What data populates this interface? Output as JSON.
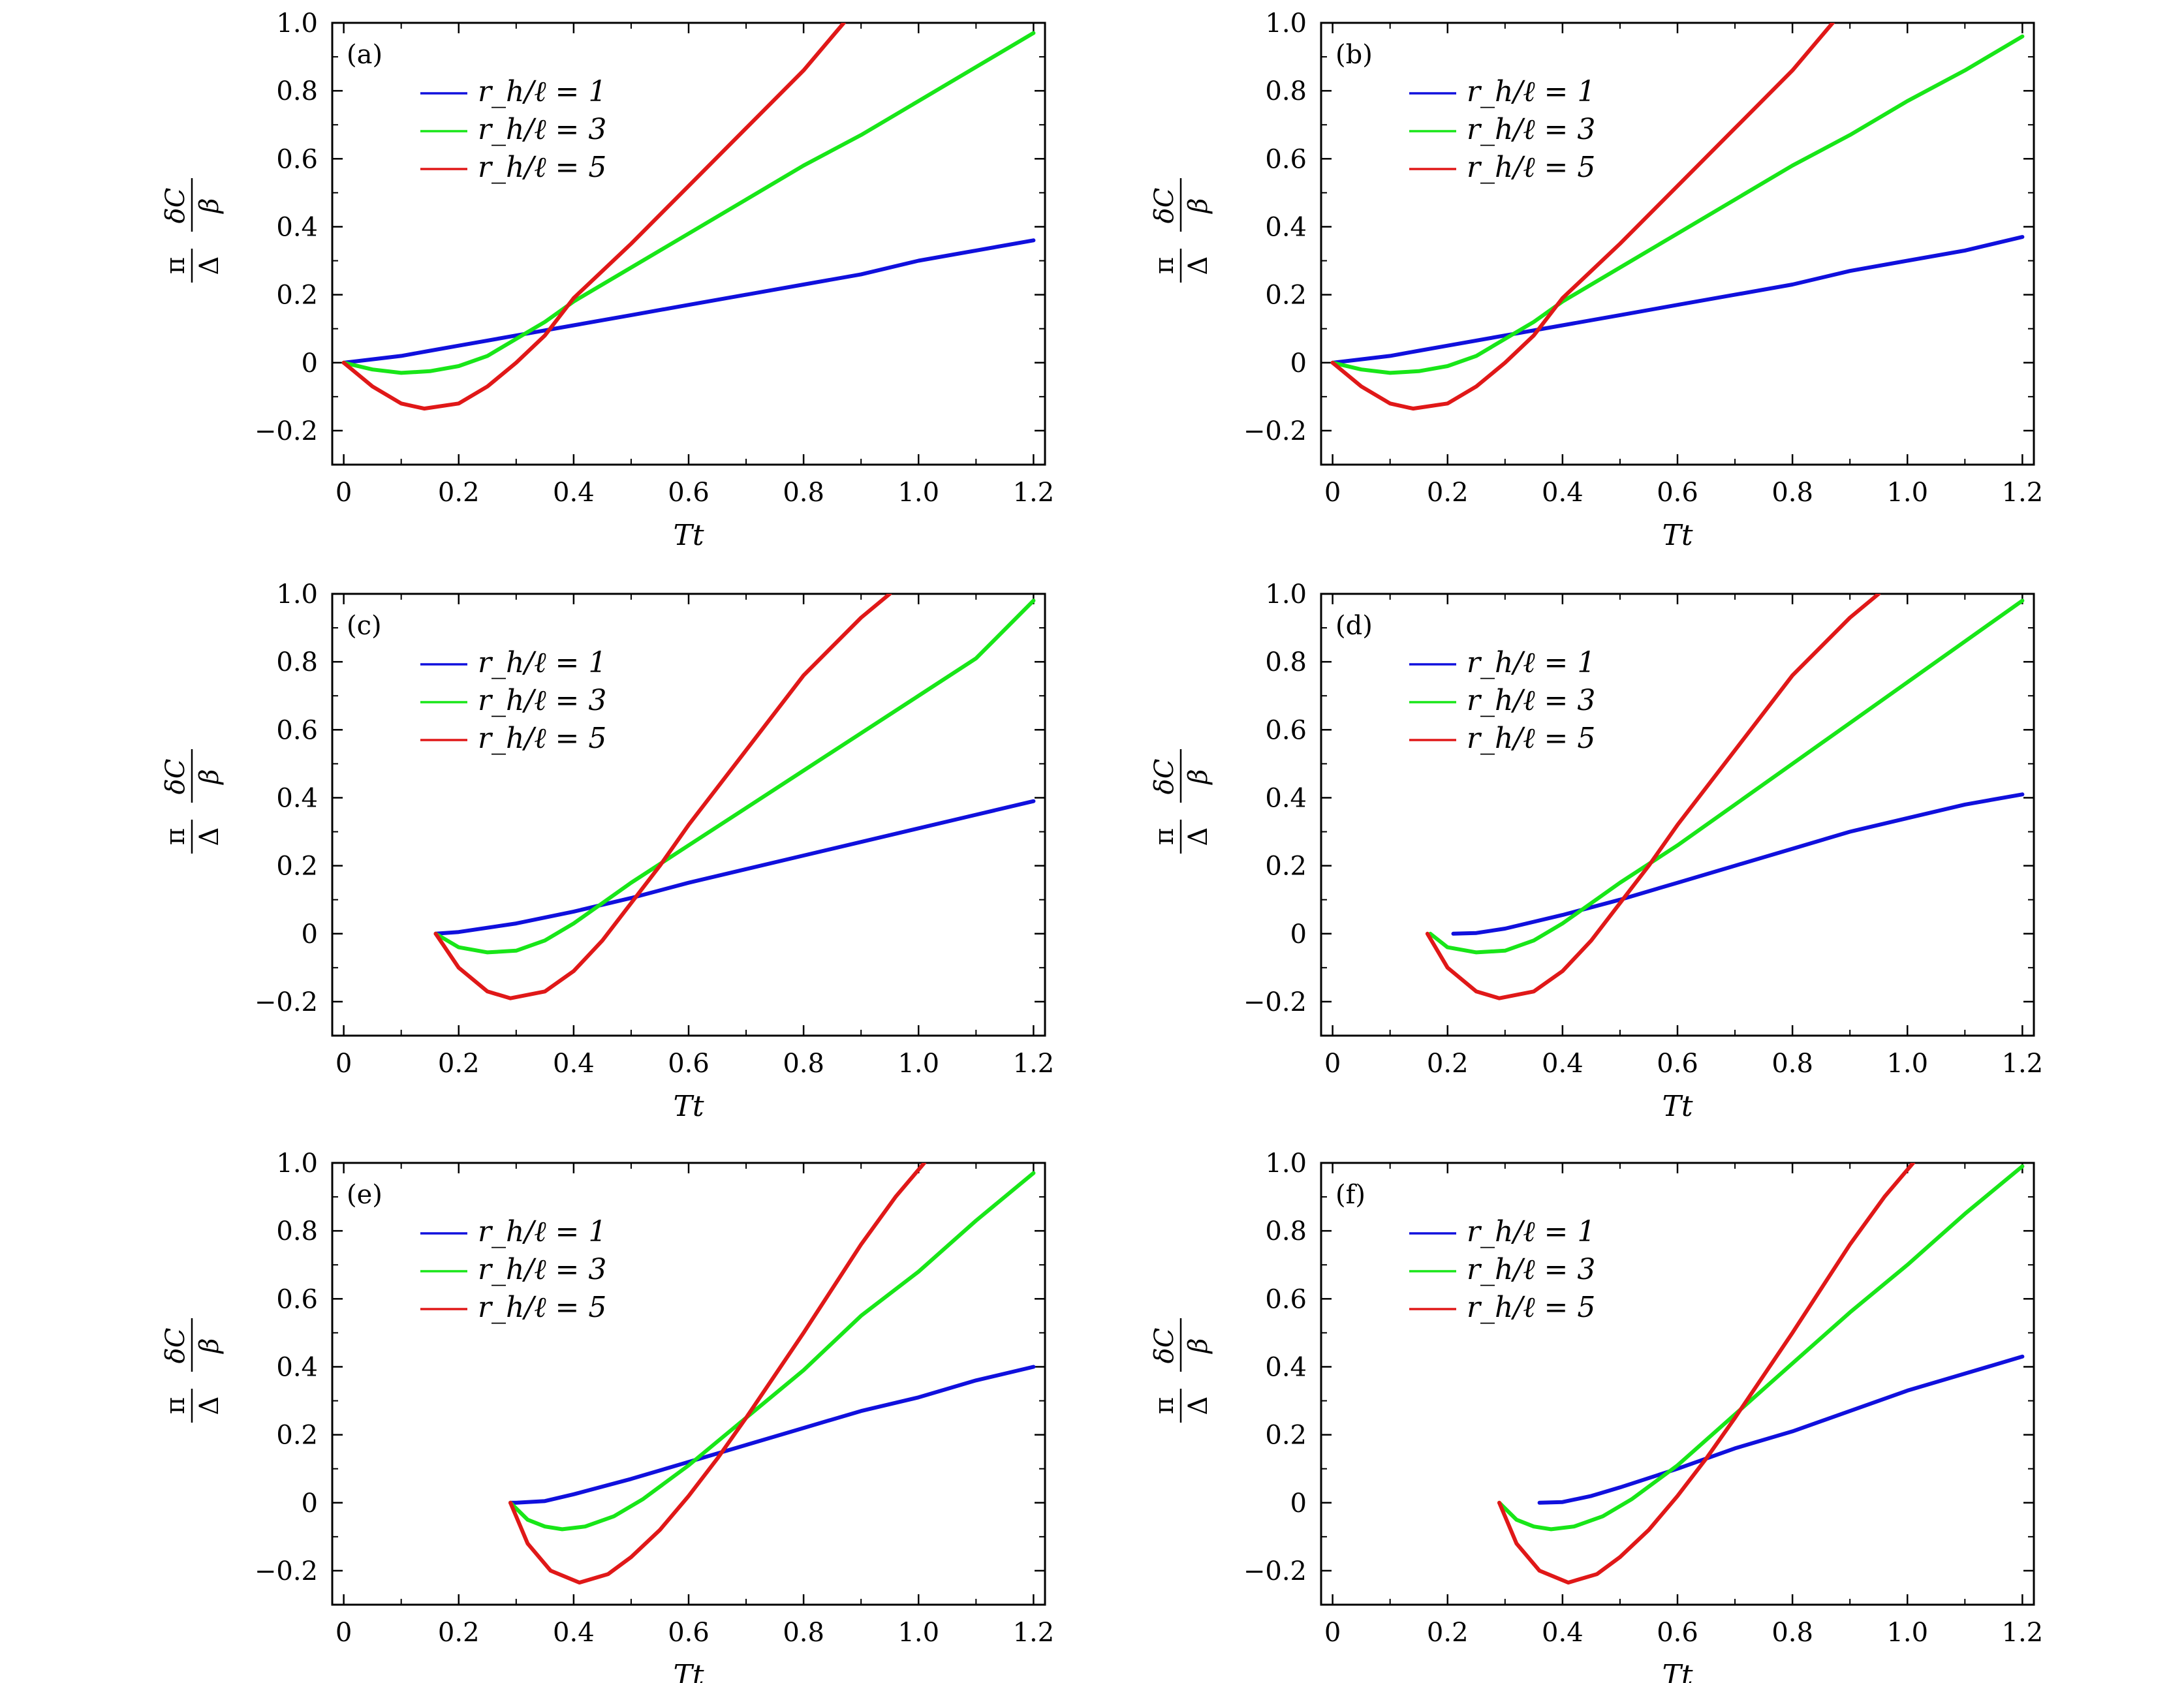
{
  "figure": {
    "legend_labels": [
      "r_h/ℓ = 1",
      "r_h/ℓ = 3",
      "r_h/ℓ = 5"
    ],
    "series_colors": {
      "blue": "#1010dd",
      "green": "#18e618",
      "red": "#e01818"
    },
    "y_axis_label": {
      "numerator_left": "π",
      "numerator_right": "δC",
      "denominator_left": "Δ",
      "denominator_right": "β"
    },
    "x_axis_label": "Tt"
  },
  "chart_data": [
    {
      "type": "line",
      "panel": "(a)",
      "xlabel": "Tt",
      "ylabel": "π/Δ · δC/β",
      "xlim": [
        -0.02,
        1.22
      ],
      "ylim": [
        -0.3,
        1.0
      ],
      "xticks": [
        "0",
        "0.2",
        "0.4",
        "0.6",
        "0.8",
        "1.0",
        "1.2"
      ],
      "yticks": [
        "−0.2",
        "0",
        "0.2",
        "0.4",
        "0.6",
        "0.8",
        "1.0"
      ],
      "legend_position": "upper-left",
      "series": [
        {
          "name": "r_h/ℓ = 1",
          "color": "#1010dd",
          "x": [
            0,
            0.05,
            0.1,
            0.15,
            0.2,
            0.3,
            0.4,
            0.5,
            0.6,
            0.7,
            0.8,
            0.9,
            1.0,
            1.1,
            1.2
          ],
          "y": [
            0,
            0.01,
            0.02,
            0.035,
            0.05,
            0.08,
            0.11,
            0.14,
            0.17,
            0.2,
            0.23,
            0.26,
            0.3,
            0.33,
            0.36
          ]
        },
        {
          "name": "r_h/ℓ = 3",
          "color": "#18e618",
          "x": [
            0,
            0.05,
            0.1,
            0.15,
            0.2,
            0.25,
            0.3,
            0.35,
            0.4,
            0.5,
            0.6,
            0.7,
            0.8,
            0.9,
            1.0,
            1.1,
            1.2
          ],
          "y": [
            0,
            -0.02,
            -0.03,
            -0.025,
            -0.01,
            0.02,
            0.07,
            0.12,
            0.18,
            0.28,
            0.38,
            0.48,
            0.58,
            0.67,
            0.77,
            0.87,
            0.97
          ]
        },
        {
          "name": "r_h/ℓ = 5",
          "color": "#e01818",
          "x": [
            0,
            0.05,
            0.1,
            0.14,
            0.2,
            0.25,
            0.3,
            0.35,
            0.4,
            0.5,
            0.6,
            0.7,
            0.8,
            0.87
          ],
          "y": [
            0,
            -0.07,
            -0.12,
            -0.135,
            -0.12,
            -0.07,
            0.0,
            0.08,
            0.19,
            0.35,
            0.52,
            0.69,
            0.86,
            1.0
          ]
        }
      ]
    },
    {
      "type": "line",
      "panel": "(b)",
      "xlabel": "Tt",
      "ylabel": "π/Δ · δC/β",
      "xlim": [
        -0.02,
        1.22
      ],
      "ylim": [
        -0.3,
        1.0
      ],
      "xticks": [
        "0",
        "0.2",
        "0.4",
        "0.6",
        "0.8",
        "1.0",
        "1.2"
      ],
      "yticks": [
        "−0.2",
        "0",
        "0.2",
        "0.4",
        "0.6",
        "0.8",
        "1.0"
      ],
      "legend_position": "upper-left",
      "series": [
        {
          "name": "r_h/ℓ = 1",
          "color": "#1010dd",
          "x": [
            0,
            0.05,
            0.1,
            0.15,
            0.2,
            0.3,
            0.4,
            0.5,
            0.6,
            0.7,
            0.8,
            0.9,
            1.0,
            1.1,
            1.2
          ],
          "y": [
            0,
            0.01,
            0.02,
            0.035,
            0.05,
            0.08,
            0.11,
            0.14,
            0.17,
            0.2,
            0.23,
            0.27,
            0.3,
            0.33,
            0.37
          ]
        },
        {
          "name": "r_h/ℓ = 3",
          "color": "#18e618",
          "x": [
            0,
            0.05,
            0.1,
            0.15,
            0.2,
            0.25,
            0.3,
            0.35,
            0.4,
            0.5,
            0.6,
            0.7,
            0.8,
            0.9,
            1.0,
            1.1,
            1.2
          ],
          "y": [
            0,
            -0.02,
            -0.03,
            -0.025,
            -0.01,
            0.02,
            0.07,
            0.12,
            0.18,
            0.28,
            0.38,
            0.48,
            0.58,
            0.67,
            0.77,
            0.86,
            0.96
          ]
        },
        {
          "name": "r_h/ℓ = 5",
          "color": "#e01818",
          "x": [
            0,
            0.05,
            0.1,
            0.14,
            0.2,
            0.25,
            0.3,
            0.35,
            0.4,
            0.5,
            0.6,
            0.7,
            0.8,
            0.87
          ],
          "y": [
            0,
            -0.07,
            -0.12,
            -0.135,
            -0.12,
            -0.07,
            0.0,
            0.08,
            0.19,
            0.35,
            0.52,
            0.69,
            0.86,
            1.0
          ]
        }
      ]
    },
    {
      "type": "line",
      "panel": "(c)",
      "xlabel": "Tt",
      "ylabel": "π/Δ · δC/β",
      "xlim": [
        -0.02,
        1.22
      ],
      "ylim": [
        -0.3,
        1.0
      ],
      "xticks": [
        "0",
        "0.2",
        "0.4",
        "0.6",
        "0.8",
        "1.0",
        "1.2"
      ],
      "yticks": [
        "−0.2",
        "0",
        "0.2",
        "0.4",
        "0.6",
        "0.8",
        "1.0"
      ],
      "legend_position": "upper-left",
      "series": [
        {
          "name": "r_h/ℓ = 1",
          "color": "#1010dd",
          "x": [
            0.16,
            0.2,
            0.3,
            0.4,
            0.5,
            0.6,
            0.7,
            0.8,
            0.9,
            1.0,
            1.1,
            1.2
          ],
          "y": [
            0,
            0.005,
            0.03,
            0.065,
            0.105,
            0.15,
            0.19,
            0.23,
            0.27,
            0.31,
            0.35,
            0.39
          ]
        },
        {
          "name": "r_h/ℓ = 3",
          "color": "#18e618",
          "x": [
            0.16,
            0.2,
            0.25,
            0.3,
            0.35,
            0.4,
            0.45,
            0.5,
            0.6,
            0.7,
            0.8,
            0.9,
            1.0,
            1.1,
            1.2
          ],
          "y": [
            0,
            -0.04,
            -0.055,
            -0.05,
            -0.02,
            0.03,
            0.09,
            0.15,
            0.26,
            0.37,
            0.48,
            0.59,
            0.7,
            0.81,
            0.98
          ]
        },
        {
          "name": "r_h/ℓ = 5",
          "color": "#e01818",
          "x": [
            0.16,
            0.2,
            0.25,
            0.29,
            0.35,
            0.4,
            0.45,
            0.5,
            0.55,
            0.6,
            0.7,
            0.8,
            0.9,
            0.95
          ],
          "y": [
            0,
            -0.1,
            -0.17,
            -0.19,
            -0.17,
            -0.11,
            -0.02,
            0.09,
            0.2,
            0.32,
            0.54,
            0.76,
            0.93,
            1.0
          ]
        }
      ]
    },
    {
      "type": "line",
      "panel": "(d)",
      "xlabel": "Tt",
      "ylabel": "π/Δ · δC/β",
      "xlim": [
        -0.02,
        1.22
      ],
      "ylim": [
        -0.3,
        1.0
      ],
      "xticks": [
        "0",
        "0.2",
        "0.4",
        "0.6",
        "0.8",
        "1.0",
        "1.2"
      ],
      "yticks": [
        "−0.2",
        "0",
        "0.2",
        "0.4",
        "0.6",
        "0.8",
        "1.0"
      ],
      "legend_position": "upper-left",
      "series": [
        {
          "name": "r_h/ℓ = 1",
          "color": "#1010dd",
          "x": [
            0.21,
            0.25,
            0.3,
            0.4,
            0.5,
            0.6,
            0.7,
            0.8,
            0.9,
            1.0,
            1.1,
            1.2
          ],
          "y": [
            0,
            0.002,
            0.015,
            0.055,
            0.1,
            0.15,
            0.2,
            0.25,
            0.3,
            0.34,
            0.38,
            0.41
          ]
        },
        {
          "name": "r_h/ℓ = 3",
          "color": "#18e618",
          "x": [
            0.17,
            0.2,
            0.25,
            0.3,
            0.35,
            0.4,
            0.45,
            0.5,
            0.6,
            0.7,
            0.8,
            0.9,
            1.0,
            1.1,
            1.2
          ],
          "y": [
            0,
            -0.04,
            -0.055,
            -0.05,
            -0.02,
            0.03,
            0.09,
            0.15,
            0.26,
            0.38,
            0.5,
            0.62,
            0.74,
            0.86,
            0.98
          ]
        },
        {
          "name": "r_h/ℓ = 5",
          "color": "#e01818",
          "x": [
            0.165,
            0.2,
            0.25,
            0.29,
            0.35,
            0.4,
            0.45,
            0.5,
            0.55,
            0.6,
            0.7,
            0.8,
            0.9,
            0.95
          ],
          "y": [
            0,
            -0.1,
            -0.17,
            -0.19,
            -0.17,
            -0.11,
            -0.02,
            0.09,
            0.2,
            0.32,
            0.54,
            0.76,
            0.93,
            1.0
          ]
        }
      ]
    },
    {
      "type": "line",
      "panel": "(e)",
      "xlabel": "Tt",
      "ylabel": "π/Δ · δC/β",
      "xlim": [
        -0.02,
        1.22
      ],
      "ylim": [
        -0.3,
        1.0
      ],
      "xticks": [
        "0",
        "0.2",
        "0.4",
        "0.6",
        "0.8",
        "1.0",
        "1.2"
      ],
      "yticks": [
        "−0.2",
        "0",
        "0.2",
        "0.4",
        "0.6",
        "0.8",
        "1.0"
      ],
      "legend_position": "upper-left",
      "series": [
        {
          "name": "r_h/ℓ = 1",
          "color": "#1010dd",
          "x": [
            0.29,
            0.3,
            0.35,
            0.4,
            0.5,
            0.6,
            0.7,
            0.8,
            0.9,
            1.0,
            1.1,
            1.2
          ],
          "y": [
            0,
            0.0,
            0.005,
            0.025,
            0.07,
            0.12,
            0.17,
            0.22,
            0.27,
            0.31,
            0.36,
            0.4
          ]
        },
        {
          "name": "r_h/ℓ = 3",
          "color": "#18e618",
          "x": [
            0.29,
            0.32,
            0.35,
            0.38,
            0.42,
            0.47,
            0.52,
            0.6,
            0.7,
            0.8,
            0.9,
            1.0,
            1.1,
            1.2
          ],
          "y": [
            0,
            -0.05,
            -0.07,
            -0.078,
            -0.07,
            -0.04,
            0.01,
            0.11,
            0.25,
            0.39,
            0.55,
            0.68,
            0.83,
            0.97
          ]
        },
        {
          "name": "r_h/ℓ = 5",
          "color": "#e01818",
          "x": [
            0.29,
            0.32,
            0.36,
            0.41,
            0.46,
            0.5,
            0.55,
            0.6,
            0.65,
            0.7,
            0.8,
            0.9,
            0.96,
            1.01
          ],
          "y": [
            0,
            -0.12,
            -0.2,
            -0.235,
            -0.21,
            -0.16,
            -0.08,
            0.02,
            0.13,
            0.25,
            0.5,
            0.76,
            0.9,
            1.0
          ]
        }
      ]
    },
    {
      "type": "line",
      "panel": "(f)",
      "xlabel": "Tt",
      "ylabel": "π/Δ · δC/β",
      "xlim": [
        -0.02,
        1.22
      ],
      "ylim": [
        -0.3,
        1.0
      ],
      "xticks": [
        "0",
        "0.2",
        "0.4",
        "0.6",
        "0.8",
        "1.0",
        "1.2"
      ],
      "yticks": [
        "−0.2",
        "0",
        "0.2",
        "0.4",
        "0.6",
        "0.8",
        "1.0"
      ],
      "legend_position": "upper-left",
      "series": [
        {
          "name": "r_h/ℓ = 1",
          "color": "#1010dd",
          "x": [
            0.36,
            0.4,
            0.45,
            0.5,
            0.6,
            0.7,
            0.8,
            0.9,
            1.0,
            1.1,
            1.2
          ],
          "y": [
            0,
            0.002,
            0.02,
            0.045,
            0.1,
            0.16,
            0.21,
            0.27,
            0.33,
            0.38,
            0.43
          ]
        },
        {
          "name": "r_h/ℓ = 3",
          "color": "#18e618",
          "x": [
            0.29,
            0.32,
            0.35,
            0.38,
            0.42,
            0.47,
            0.52,
            0.6,
            0.7,
            0.8,
            0.9,
            1.0,
            1.1,
            1.2
          ],
          "y": [
            0,
            -0.05,
            -0.07,
            -0.078,
            -0.07,
            -0.04,
            0.01,
            0.11,
            0.26,
            0.41,
            0.56,
            0.7,
            0.85,
            0.99
          ]
        },
        {
          "name": "r_h/ℓ = 5",
          "color": "#e01818",
          "x": [
            0.29,
            0.32,
            0.36,
            0.41,
            0.46,
            0.5,
            0.55,
            0.6,
            0.65,
            0.7,
            0.8,
            0.9,
            0.96,
            1.01
          ],
          "y": [
            0,
            -0.12,
            -0.2,
            -0.235,
            -0.21,
            -0.16,
            -0.08,
            0.02,
            0.13,
            0.25,
            0.5,
            0.76,
            0.9,
            1.0
          ]
        }
      ]
    }
  ]
}
